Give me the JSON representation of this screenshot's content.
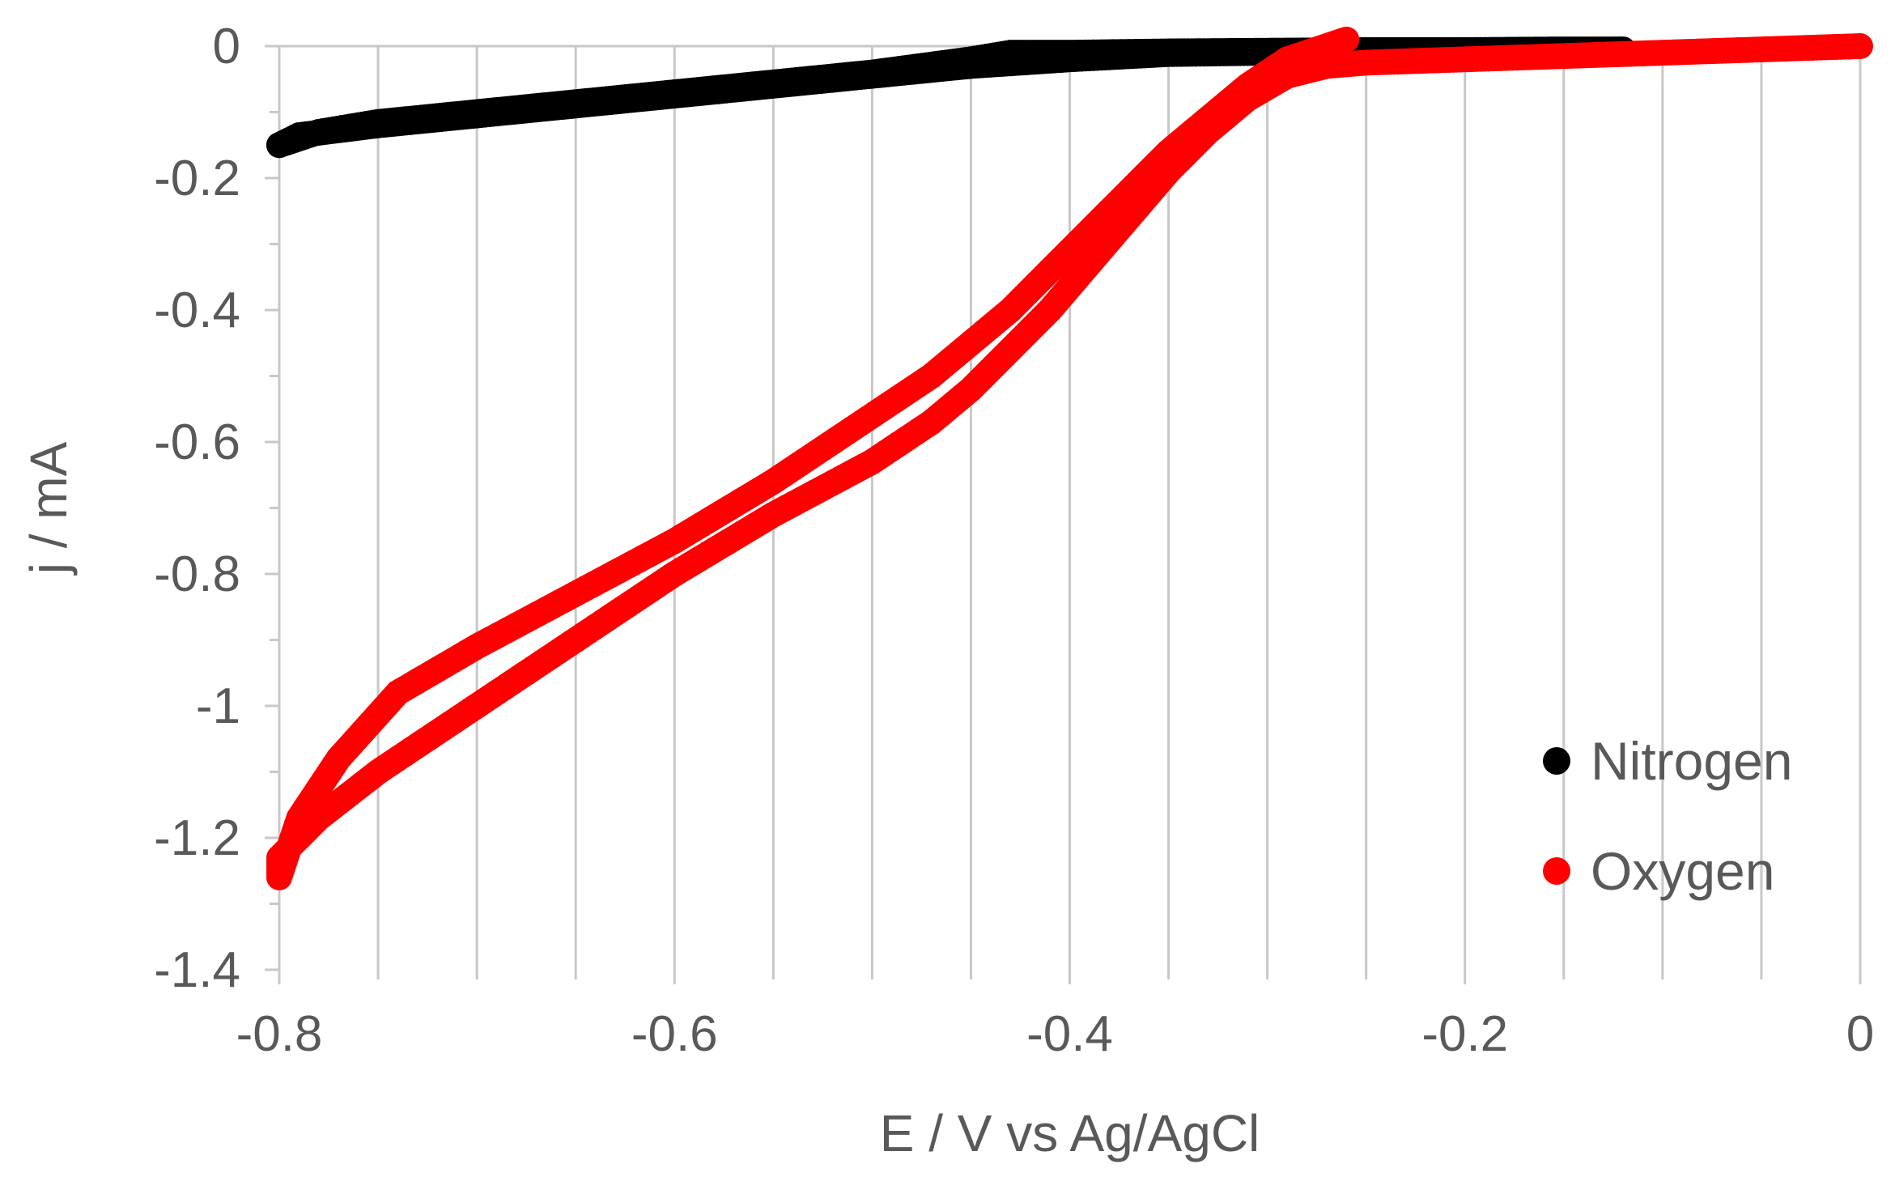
{
  "chart_data": {
    "type": "scatter",
    "xlabel": "E / V vs Ag/AgCl",
    "ylabel": "j / mA",
    "xlim": [
      -0.8,
      0
    ],
    "ylim": [
      -1.4,
      0
    ],
    "x_ticks": [
      -0.8,
      -0.6,
      -0.4,
      -0.2,
      0
    ],
    "x_tick_labels": [
      "-0.8",
      "-0.6",
      "-0.4",
      "-0.2",
      "0"
    ],
    "x_minor_step": 0.05,
    "y_ticks": [
      0,
      -0.2,
      -0.4,
      -0.6,
      -0.8,
      -1,
      -1.2,
      -1.4
    ],
    "y_tick_labels": [
      "0",
      "-0.2",
      "-0.4",
      "-0.6",
      "-0.8",
      "-1",
      "-1.2",
      "-1.4"
    ],
    "y_minor_step": 0.1,
    "grid": false,
    "legend_position": "bottom-right",
    "series": [
      {
        "name": "Nitrogen",
        "color": "#000000",
        "x": [
          -0.8,
          -0.78,
          -0.75,
          -0.7,
          -0.65,
          -0.6,
          -0.55,
          -0.5,
          -0.45,
          -0.43,
          -0.4,
          -0.35,
          -0.3,
          -0.25,
          -0.2,
          -0.15,
          -0.12,
          -0.15,
          -0.2,
          -0.25,
          -0.3,
          -0.35,
          -0.4,
          -0.45,
          -0.5,
          -0.55,
          -0.6,
          -0.65,
          -0.7,
          -0.75,
          -0.79,
          -0.8
        ],
        "y": [
          -0.15,
          -0.13,
          -0.115,
          -0.1,
          -0.085,
          -0.07,
          -0.055,
          -0.04,
          -0.02,
          -0.01,
          -0.01,
          -0.008,
          -0.007,
          -0.006,
          -0.006,
          -0.005,
          -0.005,
          -0.008,
          -0.008,
          -0.009,
          -0.01,
          -0.012,
          -0.02,
          -0.03,
          -0.045,
          -0.06,
          -0.075,
          -0.09,
          -0.105,
          -0.12,
          -0.135,
          -0.15
        ]
      },
      {
        "name": "Oxygen",
        "color": "#ff0000",
        "x": [
          0,
          -0.05,
          -0.1,
          -0.15,
          -0.2,
          -0.25,
          -0.27,
          -0.29,
          -0.31,
          -0.33,
          -0.35,
          -0.37,
          -0.39,
          -0.41,
          -0.43,
          -0.45,
          -0.47,
          -0.5,
          -0.55,
          -0.6,
          -0.65,
          -0.7,
          -0.75,
          -0.78,
          -0.8,
          -0.8,
          -0.79,
          -0.77,
          -0.74,
          -0.7,
          -0.65,
          -0.6,
          -0.55,
          -0.5,
          -0.47,
          -0.45,
          -0.43,
          -0.41,
          -0.39,
          -0.37,
          -0.35,
          -0.33,
          -0.31,
          -0.29,
          -0.27,
          -0.26
        ],
        "y": [
          0,
          -0.005,
          -0.01,
          -0.015,
          -0.02,
          -0.025,
          -0.03,
          -0.045,
          -0.08,
          -0.13,
          -0.19,
          -0.26,
          -0.33,
          -0.4,
          -0.46,
          -0.52,
          -0.57,
          -0.63,
          -0.71,
          -0.8,
          -0.9,
          -1.0,
          -1.1,
          -1.17,
          -1.23,
          -1.26,
          -1.17,
          -1.08,
          -0.98,
          -0.91,
          -0.83,
          -0.75,
          -0.66,
          -0.56,
          -0.5,
          -0.45,
          -0.4,
          -0.34,
          -0.28,
          -0.22,
          -0.16,
          -0.11,
          -0.06,
          -0.02,
          0.0,
          0.01
        ]
      }
    ]
  }
}
